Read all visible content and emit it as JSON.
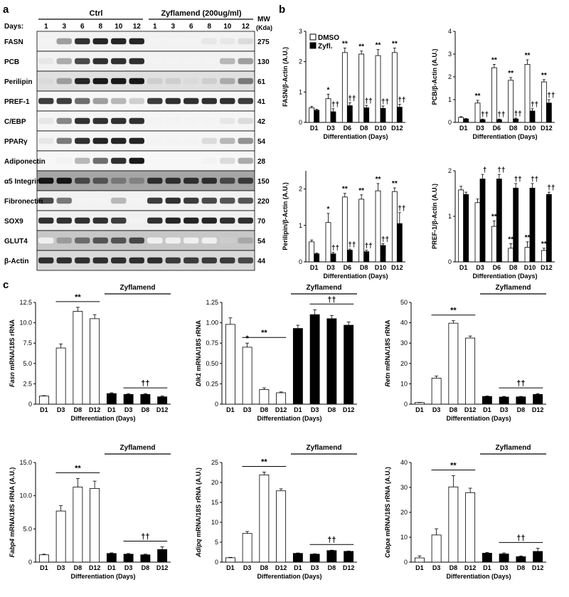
{
  "panels": {
    "a": "a",
    "b": "b",
    "c": "c"
  },
  "blot": {
    "ctrl_label": "Ctrl",
    "zyf_label": "Zyflamend (200ug/ml)",
    "days_label": "Days:",
    "days": [
      "1",
      "3",
      "6",
      "8",
      "10",
      "12",
      "1",
      "3",
      "6",
      "8",
      "10",
      "12"
    ],
    "mw_header": "MW",
    "mw_unit": "(Kda)",
    "rows": [
      {
        "name": "FASN",
        "mw": "275",
        "ctrl": [
          0.05,
          0.4,
          0.85,
          0.9,
          0.9,
          0.9
        ],
        "zyf": [
          0.05,
          0.05,
          0.05,
          0.1,
          0.1,
          0.15
        ],
        "bg": 0.05
      },
      {
        "name": "PCB",
        "mw": "130",
        "ctrl": [
          0.1,
          0.35,
          0.75,
          0.85,
          0.85,
          0.85
        ],
        "zyf": [
          0.05,
          0.05,
          0.05,
          0.05,
          0.3,
          0.4
        ],
        "bg": 0.05
      },
      {
        "name": "Perilipin",
        "mw": "61",
        "ctrl": [
          0.15,
          0.4,
          0.9,
          0.95,
          0.95,
          0.95
        ],
        "zyf": [
          0.2,
          0.2,
          0.15,
          0.2,
          0.35,
          0.55
        ],
        "bg": 0.12
      },
      {
        "name": "PREF-1",
        "mw": "41",
        "ctrl": [
          0.8,
          0.8,
          0.6,
          0.4,
          0.3,
          0.2
        ],
        "zyf": [
          0.8,
          0.85,
          0.85,
          0.85,
          0.85,
          0.8
        ],
        "bg": 0.03
      },
      {
        "name": "C/EBP",
        "mw": "42",
        "ctrl": [
          0.1,
          0.5,
          0.85,
          0.85,
          0.85,
          0.85
        ],
        "zyf": [
          0.05,
          0.05,
          0.05,
          0.05,
          0.1,
          0.15
        ],
        "bg": 0.04
      },
      {
        "name": "PPARγ",
        "mw": "54",
        "ctrl": [
          0.1,
          0.55,
          0.85,
          0.9,
          0.9,
          0.9
        ],
        "zyf": [
          0.05,
          0.05,
          0.05,
          0.15,
          0.3,
          0.45
        ],
        "bg": 0.04
      },
      {
        "name": "Adiponectin",
        "mw": "28",
        "ctrl": [
          0.02,
          0.05,
          0.3,
          0.6,
          0.85,
          0.95
        ],
        "zyf": [
          0.02,
          0.02,
          0.02,
          0.05,
          0.15,
          0.35
        ],
        "bg": 0.03
      },
      {
        "name": "α5 Integrin",
        "mw": "150",
        "ctrl": [
          0.95,
          0.95,
          0.75,
          0.7,
          0.55,
          0.5
        ],
        "zyf": [
          0.85,
          0.85,
          0.85,
          0.85,
          0.75,
          0.8
        ],
        "bg": 0.35
      },
      {
        "name": "Fibronectin",
        "mw": "220",
        "ctrl": [
          0.75,
          0.55,
          0.05,
          0.05,
          0.3,
          0.05
        ],
        "zyf": [
          0.8,
          0.85,
          0.8,
          0.75,
          0.7,
          0.7
        ],
        "bg": 0.05
      },
      {
        "name": "SOX9",
        "mw": "70",
        "ctrl": [
          0.85,
          0.85,
          0.85,
          0.85,
          0.8,
          0.05
        ],
        "zyf": [
          0.85,
          0.9,
          0.9,
          0.9,
          0.85,
          0.85
        ],
        "bg": 0.06
      },
      {
        "name": "GLUT4",
        "mw": "54",
        "ctrl": [
          0.05,
          0.4,
          0.6,
          0.7,
          0.7,
          0.75
        ],
        "zyf": [
          0.05,
          0.05,
          0.05,
          0.05,
          0.2,
          0.35
        ],
        "bg": 0.22
      },
      {
        "name": "β-Actin",
        "mw": "44",
        "ctrl": [
          0.85,
          0.85,
          0.85,
          0.85,
          0.85,
          0.85
        ],
        "zyf": [
          0.85,
          0.8,
          0.8,
          0.8,
          0.8,
          0.75
        ],
        "bg": 0.15
      }
    ]
  },
  "chart_data": [
    {
      "type": "bar",
      "panel": "b",
      "ylabel": "FASN/β-Actin (A.U.)",
      "xlabel": "Differentiation (Days)",
      "categories": [
        "D1",
        "D3",
        "D6",
        "D8",
        "D10",
        "D12"
      ],
      "ylim": [
        0,
        3
      ],
      "yticks": [
        0,
        1,
        2,
        3
      ],
      "series": [
        {
          "name": "DMSO",
          "values": [
            0.48,
            0.78,
            2.3,
            2.25,
            2.2,
            2.3
          ],
          "errors": [
            0.05,
            0.15,
            0.15,
            0.1,
            0.2,
            0.15
          ]
        },
        {
          "name": "Zyfl.",
          "values": [
            0.4,
            0.35,
            0.55,
            0.48,
            0.46,
            0.5
          ],
          "errors": [
            0.03,
            0.1,
            0.1,
            0.08,
            0.08,
            0.1
          ]
        }
      ],
      "annotations_dmso": [
        "",
        "*",
        "**",
        "**",
        "**",
        "**"
      ],
      "annotations_zyf": [
        "",
        "††",
        "††",
        "††",
        "††",
        "††"
      ],
      "legend": true
    },
    {
      "type": "bar",
      "panel": "b",
      "ylabel": "PCB/β-Actin (A.U.)",
      "xlabel": "Differentiation (Days)",
      "categories": [
        "D1",
        "D3",
        "D6",
        "D8",
        "D10",
        "D12"
      ],
      "ylim": [
        0,
        4
      ],
      "yticks": [
        0,
        1,
        2,
        3,
        4
      ],
      "series": [
        {
          "name": "DMSO",
          "values": [
            0.22,
            0.85,
            2.4,
            1.85,
            2.55,
            1.78
          ],
          "errors": [
            0.03,
            0.12,
            0.15,
            0.12,
            0.2,
            0.1
          ]
        },
        {
          "name": "Zyfl.",
          "values": [
            0.15,
            0.12,
            0.12,
            0.15,
            0.5,
            0.85
          ],
          "errors": [
            0.02,
            0.03,
            0.03,
            0.04,
            0.1,
            0.15
          ]
        }
      ],
      "annotations_dmso": [
        "",
        "**",
        "**",
        "**",
        "**",
        "**"
      ],
      "annotations_zyf": [
        "",
        "††",
        "††",
        "††",
        "††",
        "††"
      ],
      "legend": false
    },
    {
      "type": "bar",
      "panel": "b",
      "ylabel": "Perilipin/β-Actin (A.U.)",
      "xlabel": "Differentiation (Days)",
      "categories": [
        "D1",
        "D3",
        "D6",
        "D8",
        "D10",
        "D12"
      ],
      "ylim": [
        0,
        2.5
      ],
      "yticks": [
        0,
        1,
        2
      ],
      "series": [
        {
          "name": "DMSO",
          "values": [
            0.55,
            1.08,
            1.78,
            1.72,
            1.95,
            1.93
          ],
          "errors": [
            0.05,
            0.25,
            0.1,
            0.12,
            0.2,
            0.1
          ]
        },
        {
          "name": "Zyfl.",
          "values": [
            0.22,
            0.22,
            0.32,
            0.28,
            0.45,
            1.05
          ],
          "errors": [
            0.02,
            0.04,
            0.03,
            0.04,
            0.05,
            0.3
          ]
        }
      ],
      "annotations_dmso": [
        "",
        "*",
        "**",
        "**",
        "**",
        "**"
      ],
      "annotations_zyf": [
        "",
        "††",
        "††",
        "††",
        "††",
        "††"
      ],
      "legend": false
    },
    {
      "type": "bar",
      "panel": "b",
      "ylabel": "PREF-1/β-Actin (A.U.)",
      "xlabel": "Differentiation (Days)",
      "categories": [
        "D1",
        "D3",
        "D6",
        "D8",
        "D10",
        "D12"
      ],
      "ylim": [
        0,
        2
      ],
      "yticks": [
        0,
        1,
        2
      ],
      "series": [
        {
          "name": "DMSO",
          "values": [
            1.58,
            1.3,
            0.78,
            0.3,
            0.32,
            0.25
          ],
          "errors": [
            0.08,
            0.08,
            0.12,
            0.1,
            0.12,
            0.05
          ]
        },
        {
          "name": "Zyfl.",
          "values": [
            1.48,
            1.82,
            1.82,
            1.62,
            1.62,
            1.48
          ],
          "errors": [
            0.05,
            0.1,
            0.1,
            0.1,
            0.1,
            0.05
          ]
        }
      ],
      "annotations_dmso": [
        "",
        "",
        "**",
        "**",
        "**",
        "**"
      ],
      "annotations_zyf": [
        "",
        "†",
        "††",
        "††",
        "††",
        "††"
      ],
      "legend": false
    },
    {
      "type": "bar",
      "panel": "c",
      "ylabel_italic": "Fasn",
      "ylabel_rest": " mRNA/18S rRNA",
      "xlabel": "Differentiation (Days)",
      "categories": [
        "D1",
        "D3",
        "D8",
        "D12",
        "D1",
        "D3",
        "D8",
        "D12"
      ],
      "ylim": [
        0,
        12.5
      ],
      "yticks": [
        0,
        2.5,
        5.0,
        7.5,
        10.0,
        12.5
      ],
      "yticklabels": [
        "0",
        "2.5",
        "5.0",
        "7.5",
        "10.0",
        "12.5"
      ],
      "values": [
        1.0,
        6.9,
        11.4,
        10.5,
        1.3,
        1.2,
        1.2,
        0.9
      ],
      "errors": [
        0.05,
        0.5,
        0.5,
        0.5,
        0.1,
        0.08,
        0.1,
        0.1
      ],
      "group_label": "Zyflamend",
      "sig_ctrl": "**",
      "sig_zyf": "††"
    },
    {
      "type": "bar",
      "panel": "c",
      "ylabel_italic": "Dlk1",
      "ylabel_rest": " mRNA/18S rRNA",
      "xlabel": "Differentiation (Days)",
      "categories": [
        "D1",
        "D3",
        "D8",
        "D12",
        "D1",
        "D3",
        "D8",
        "D12"
      ],
      "ylim": [
        0,
        1.25
      ],
      "yticks": [
        0,
        0.25,
        0.5,
        0.75,
        1.0,
        1.25
      ],
      "yticklabels": [
        "0",
        "0.25",
        "0.50",
        "0.75",
        "1.00",
        "1.25"
      ],
      "values": [
        0.98,
        0.7,
        0.18,
        0.14,
        0.93,
        1.1,
        1.05,
        0.97
      ],
      "errors": [
        0.08,
        0.05,
        0.02,
        0.01,
        0.04,
        0.06,
        0.04,
        0.04
      ],
      "group_label": "Zyflamend",
      "sig_ctrl": "**",
      "sig_ctrl_d3": "*",
      "sig_zyf": "††"
    },
    {
      "type": "bar",
      "panel": "c",
      "ylabel_italic": "Retn",
      "ylabel_rest": " mRNA/18S rRNA",
      "xlabel": "Differentiation (Days)",
      "categories": [
        "D1",
        "D3",
        "D8",
        "D12",
        "D1",
        "D3",
        "D8",
        "D12"
      ],
      "ylim": [
        0,
        50
      ],
      "yticks": [
        0,
        10,
        20,
        30,
        40,
        50
      ],
      "yticklabels": [
        "0",
        "10",
        "20",
        "30",
        "40",
        "50"
      ],
      "values": [
        0.8,
        12.8,
        39.8,
        32.5,
        3.8,
        3.5,
        3.6,
        4.8
      ],
      "errors": [
        0.1,
        1.0,
        1.2,
        1.0,
        0.2,
        0.3,
        0.2,
        0.4
      ],
      "group_label": "Zyflamend",
      "sig_ctrl": "**",
      "sig_zyf": "††"
    },
    {
      "type": "bar",
      "panel": "c",
      "ylabel_italic": "Fabp4",
      "ylabel_rest": " mRNA/18S rRNA (A.U.)",
      "xlabel": "Differentiation (Days)",
      "categories": [
        "D1",
        "D3",
        "D8",
        "D12",
        "D1",
        "D3",
        "D8",
        "D12"
      ],
      "ylim": [
        0,
        15
      ],
      "yticks": [
        0,
        5,
        10,
        15
      ],
      "yticklabels": [
        "0",
        "5.0",
        "10.0",
        "15.0"
      ],
      "values": [
        1.1,
        7.7,
        11.3,
        11.1,
        1.3,
        1.2,
        1.1,
        1.9
      ],
      "errors": [
        0.1,
        0.8,
        1.3,
        1.1,
        0.1,
        0.1,
        0.1,
        0.4
      ],
      "group_label": "Zyflamend",
      "sig_ctrl": "**",
      "sig_zyf": "††"
    },
    {
      "type": "bar",
      "panel": "c",
      "ylabel_italic": "Adipq",
      "ylabel_rest": " mRNA/18S rRNA (A.U.)",
      "xlabel": "Differentiation (Days)",
      "categories": [
        "D1",
        "D3",
        "D8",
        "D12",
        "D1",
        "D3",
        "D8",
        "D12"
      ],
      "ylim": [
        0,
        25
      ],
      "yticks": [
        0,
        5,
        10,
        15,
        20,
        25
      ],
      "yticklabels": [
        "0",
        "5",
        "10",
        "15",
        "20",
        "25"
      ],
      "values": [
        1.1,
        7.2,
        21.9,
        17.9,
        2.2,
        2.0,
        2.9,
        2.7
      ],
      "errors": [
        0.1,
        0.5,
        0.7,
        0.5,
        0.1,
        0.1,
        0.1,
        0.1
      ],
      "group_label": "Zyflamend",
      "sig_ctrl": "**",
      "sig_zyf": "††"
    },
    {
      "type": "bar",
      "panel": "c",
      "ylabel_italic": "Cebpa",
      "ylabel_rest": " mRNA/18S rRNA (A.U.)",
      "xlabel": "Differentiation (Days)",
      "categories": [
        "D1",
        "D3",
        "D8",
        "D12",
        "D1",
        "D3",
        "D8",
        "D12"
      ],
      "ylim": [
        0,
        40
      ],
      "yticks": [
        0,
        10,
        20,
        30,
        40
      ],
      "yticklabels": [
        "0",
        "10",
        "20",
        "30",
        "40"
      ],
      "values": [
        1.7,
        10.9,
        30.2,
        27.9,
        3.6,
        3.3,
        2.2,
        4.3
      ],
      "errors": [
        0.8,
        2.5,
        4.5,
        1.8,
        0.3,
        0.4,
        0.3,
        1.3
      ],
      "group_label": "Zyflamend",
      "sig_ctrl": "**",
      "sig_zyf": "††"
    }
  ]
}
